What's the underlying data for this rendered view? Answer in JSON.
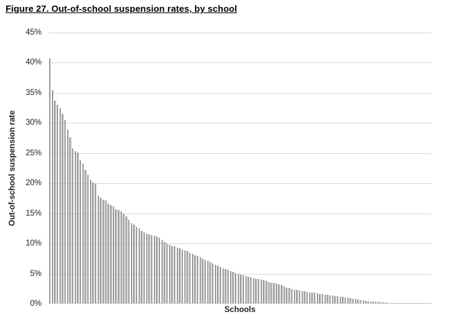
{
  "title": "Figure 27. Out-of-school suspension rates, by school",
  "chart_data": {
    "type": "bar",
    "title": "Figure 27. Out-of-school suspension rates, by school",
    "xlabel": "Schools",
    "ylabel": "Out-of-school suspension rate",
    "ylim": [
      0,
      45
    ],
    "ytick_step": 5,
    "ytick_labels": [
      "0%",
      "5%",
      "10%",
      "15%",
      "20%",
      "25%",
      "30%",
      "35%",
      "40%",
      "45%"
    ],
    "grid": true,
    "legend": "none",
    "categories_note": "150 individual schools, unlabeled, sorted descending",
    "bar_fill_color": "#c2c2c2",
    "bar_border_color": "#7f7f7f",
    "gridline_color": "#d9d9d9",
    "values": [
      40.7,
      35.4,
      33.7,
      33.0,
      32.4,
      31.5,
      30.5,
      28.9,
      27.6,
      25.8,
      25.3,
      25.1,
      23.8,
      23.2,
      22.2,
      21.4,
      20.6,
      20.2,
      19.9,
      18.0,
      17.6,
      17.3,
      17.2,
      16.6,
      16.3,
      16.1,
      15.7,
      15.5,
      15.3,
      15.0,
      14.5,
      13.9,
      13.4,
      13.1,
      12.8,
      12.5,
      12.1,
      11.8,
      11.6,
      11.5,
      11.4,
      11.3,
      11.2,
      10.9,
      10.6,
      10.3,
      10.0,
      9.8,
      9.6,
      9.5,
      9.3,
      9.2,
      9.0,
      8.9,
      8.7,
      8.4,
      8.3,
      8.1,
      7.9,
      7.7,
      7.5,
      7.3,
      7.1,
      6.9,
      6.7,
      6.5,
      6.3,
      6.1,
      5.9,
      5.7,
      5.6,
      5.4,
      5.3,
      5.1,
      4.9,
      4.8,
      4.7,
      4.6,
      4.5,
      4.4,
      4.3,
      4.2,
      4.1,
      4.0,
      3.9,
      3.8,
      3.6,
      3.5,
      3.4,
      3.3,
      3.2,
      3.1,
      2.9,
      2.7,
      2.6,
      2.4,
      2.3,
      2.3,
      2.2,
      2.1,
      2.1,
      2.0,
      1.9,
      1.9,
      1.8,
      1.7,
      1.6,
      1.6,
      1.5,
      1.5,
      1.4,
      1.4,
      1.3,
      1.3,
      1.2,
      1.1,
      1.0,
      1.0,
      0.9,
      0.8,
      0.8,
      0.7,
      0.6,
      0.6,
      0.5,
      0.5,
      0.4,
      0.4,
      0.3,
      0.3,
      0.2,
      0.2,
      0.2,
      0.1,
      0.1,
      0.1,
      0.1,
      0.0,
      0.0,
      0.0,
      0.0,
      0.0,
      0.0,
      0.0,
      0.0,
      0.0,
      0.0,
      0.0,
      0.0,
      0.0
    ]
  }
}
